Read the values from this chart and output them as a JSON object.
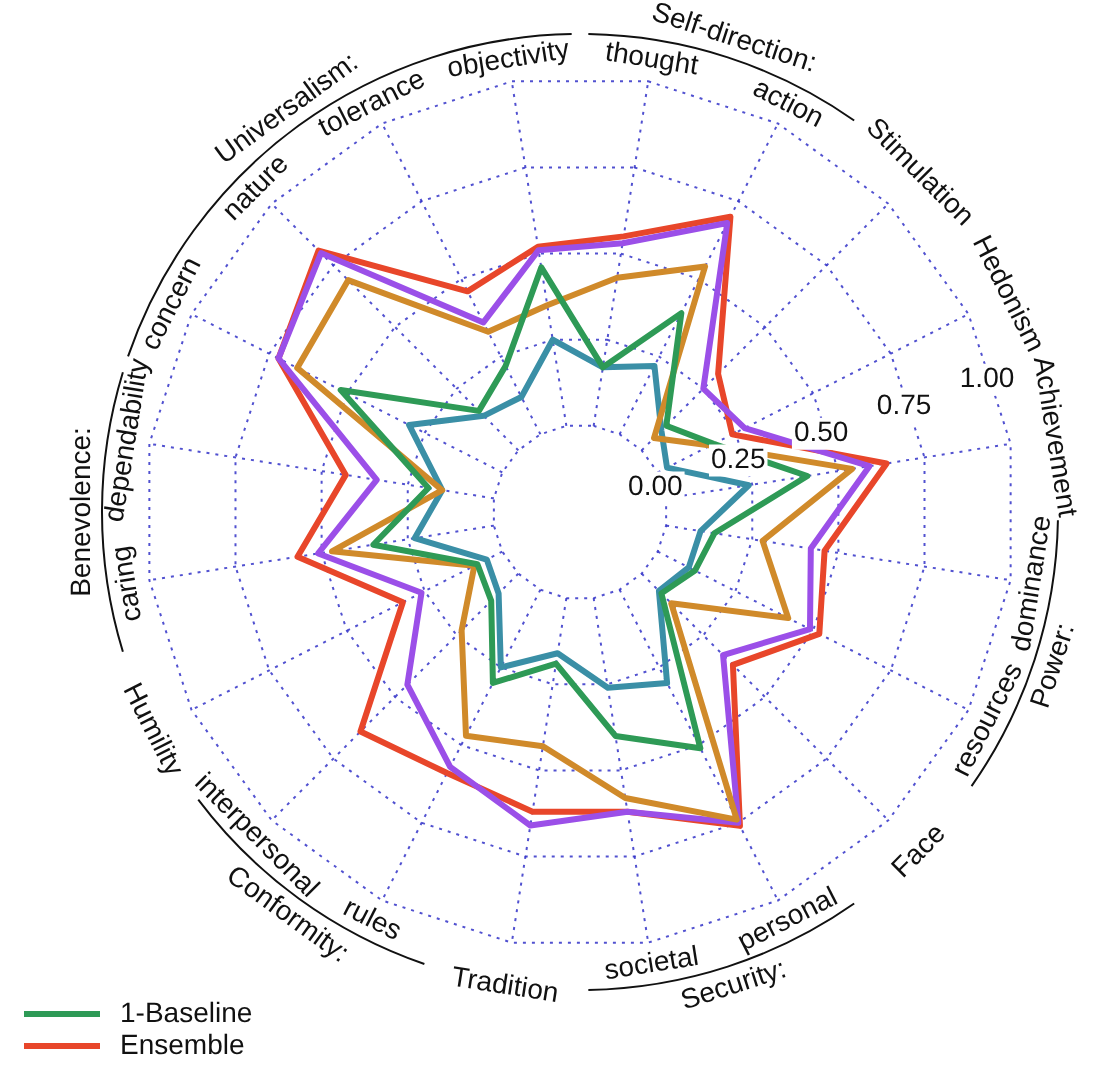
{
  "chart_data": {
    "type": "radar",
    "categories": [
      "thought",
      "action",
      "Stimulation",
      "Hedonism",
      "Achievement",
      "dominance",
      "resources",
      "Face",
      "personal",
      "societal",
      "Tradition",
      "rules",
      "interpersonal",
      "Humility",
      "caring",
      "dependability",
      "concern",
      "nature",
      "tolerance",
      "objectivity"
    ],
    "series": [
      {
        "name": "1-Baseline",
        "color": "#2e9a56",
        "values": [
          0.17,
          0.39,
          0.1,
          0.18,
          0.41,
          0.14,
          0.12,
          0.08,
          0.51,
          0.4,
          0.19,
          0.3,
          0.11,
          0.08,
          0.35,
          0.19,
          0.52,
          0.16,
          0.22,
          0.46
        ]
      },
      {
        "color": "#d08a2a",
        "values": [
          0.43,
          0.54,
          0.05,
          0.17,
          0.54,
          0.28,
          0.42,
          0.12,
          0.74,
          0.58,
          0.43,
          0.47,
          0.23,
          0.09,
          0.47,
          0.15,
          0.66,
          0.69,
          0.33,
          0.35
        ]
      },
      {
        "color": "#3a8fa6",
        "values": [
          0.17,
          0.22,
          0.08,
          0.03,
          0.24,
          0.1,
          0.1,
          0.07,
          0.3,
          0.26,
          0.16,
          0.25,
          0.08,
          0.05,
          0.23,
          0.15,
          0.3,
          0.14,
          0.12,
          0.25
        ]
      },
      {
        "color": "#9b4fe8",
        "values": [
          0.53,
          0.68,
          0.25,
          0.28,
          0.59,
          0.42,
          0.49,
          0.33,
          0.75,
          0.62,
          0.66,
          0.57,
          0.45,
          0.26,
          0.51,
          0.34,
          0.72,
          0.8,
          0.36,
          0.51
        ]
      },
      {
        "name": "Ensemble",
        "color": "#e8462a",
        "values": [
          0.55,
          0.7,
          0.31,
          0.24,
          0.64,
          0.46,
          0.52,
          0.37,
          0.76,
          0.62,
          0.62,
          0.59,
          0.64,
          0.32,
          0.57,
          0.43,
          0.72,
          0.81,
          0.46,
          0.52
        ]
      }
    ],
    "ylim": [
      -0.25,
      1
    ],
    "yticks": [
      {
        "value": 0,
        "label": "0.00"
      },
      {
        "value": 0.25,
        "label": "0.25"
      },
      {
        "value": 0.5,
        "label": "0.50"
      },
      {
        "value": 0.75,
        "label": "0.75"
      },
      {
        "value": 1,
        "label": "1.00"
      }
    ],
    "grid": true,
    "legend": "bottom left",
    "marker": "none",
    "line_style": "solid",
    "annotations": [
      {
        "text": "Self-direction:",
        "x": [
          "thought",
          "action"
        ]
      },
      {
        "text": "Power:",
        "x": [
          "dominance",
          "resources"
        ]
      },
      {
        "text": "Security:",
        "x": [
          "personal",
          "societal"
        ]
      },
      {
        "text": "Conformity:",
        "x": [
          "rules",
          "interpersonal"
        ]
      },
      {
        "text": "Benevolence:",
        "x": [
          "caring",
          "dependability"
        ]
      },
      {
        "text": "Universalism:",
        "x": [
          "concern",
          "nature",
          "tolerance",
          "objectivity"
        ]
      }
    ]
  }
}
